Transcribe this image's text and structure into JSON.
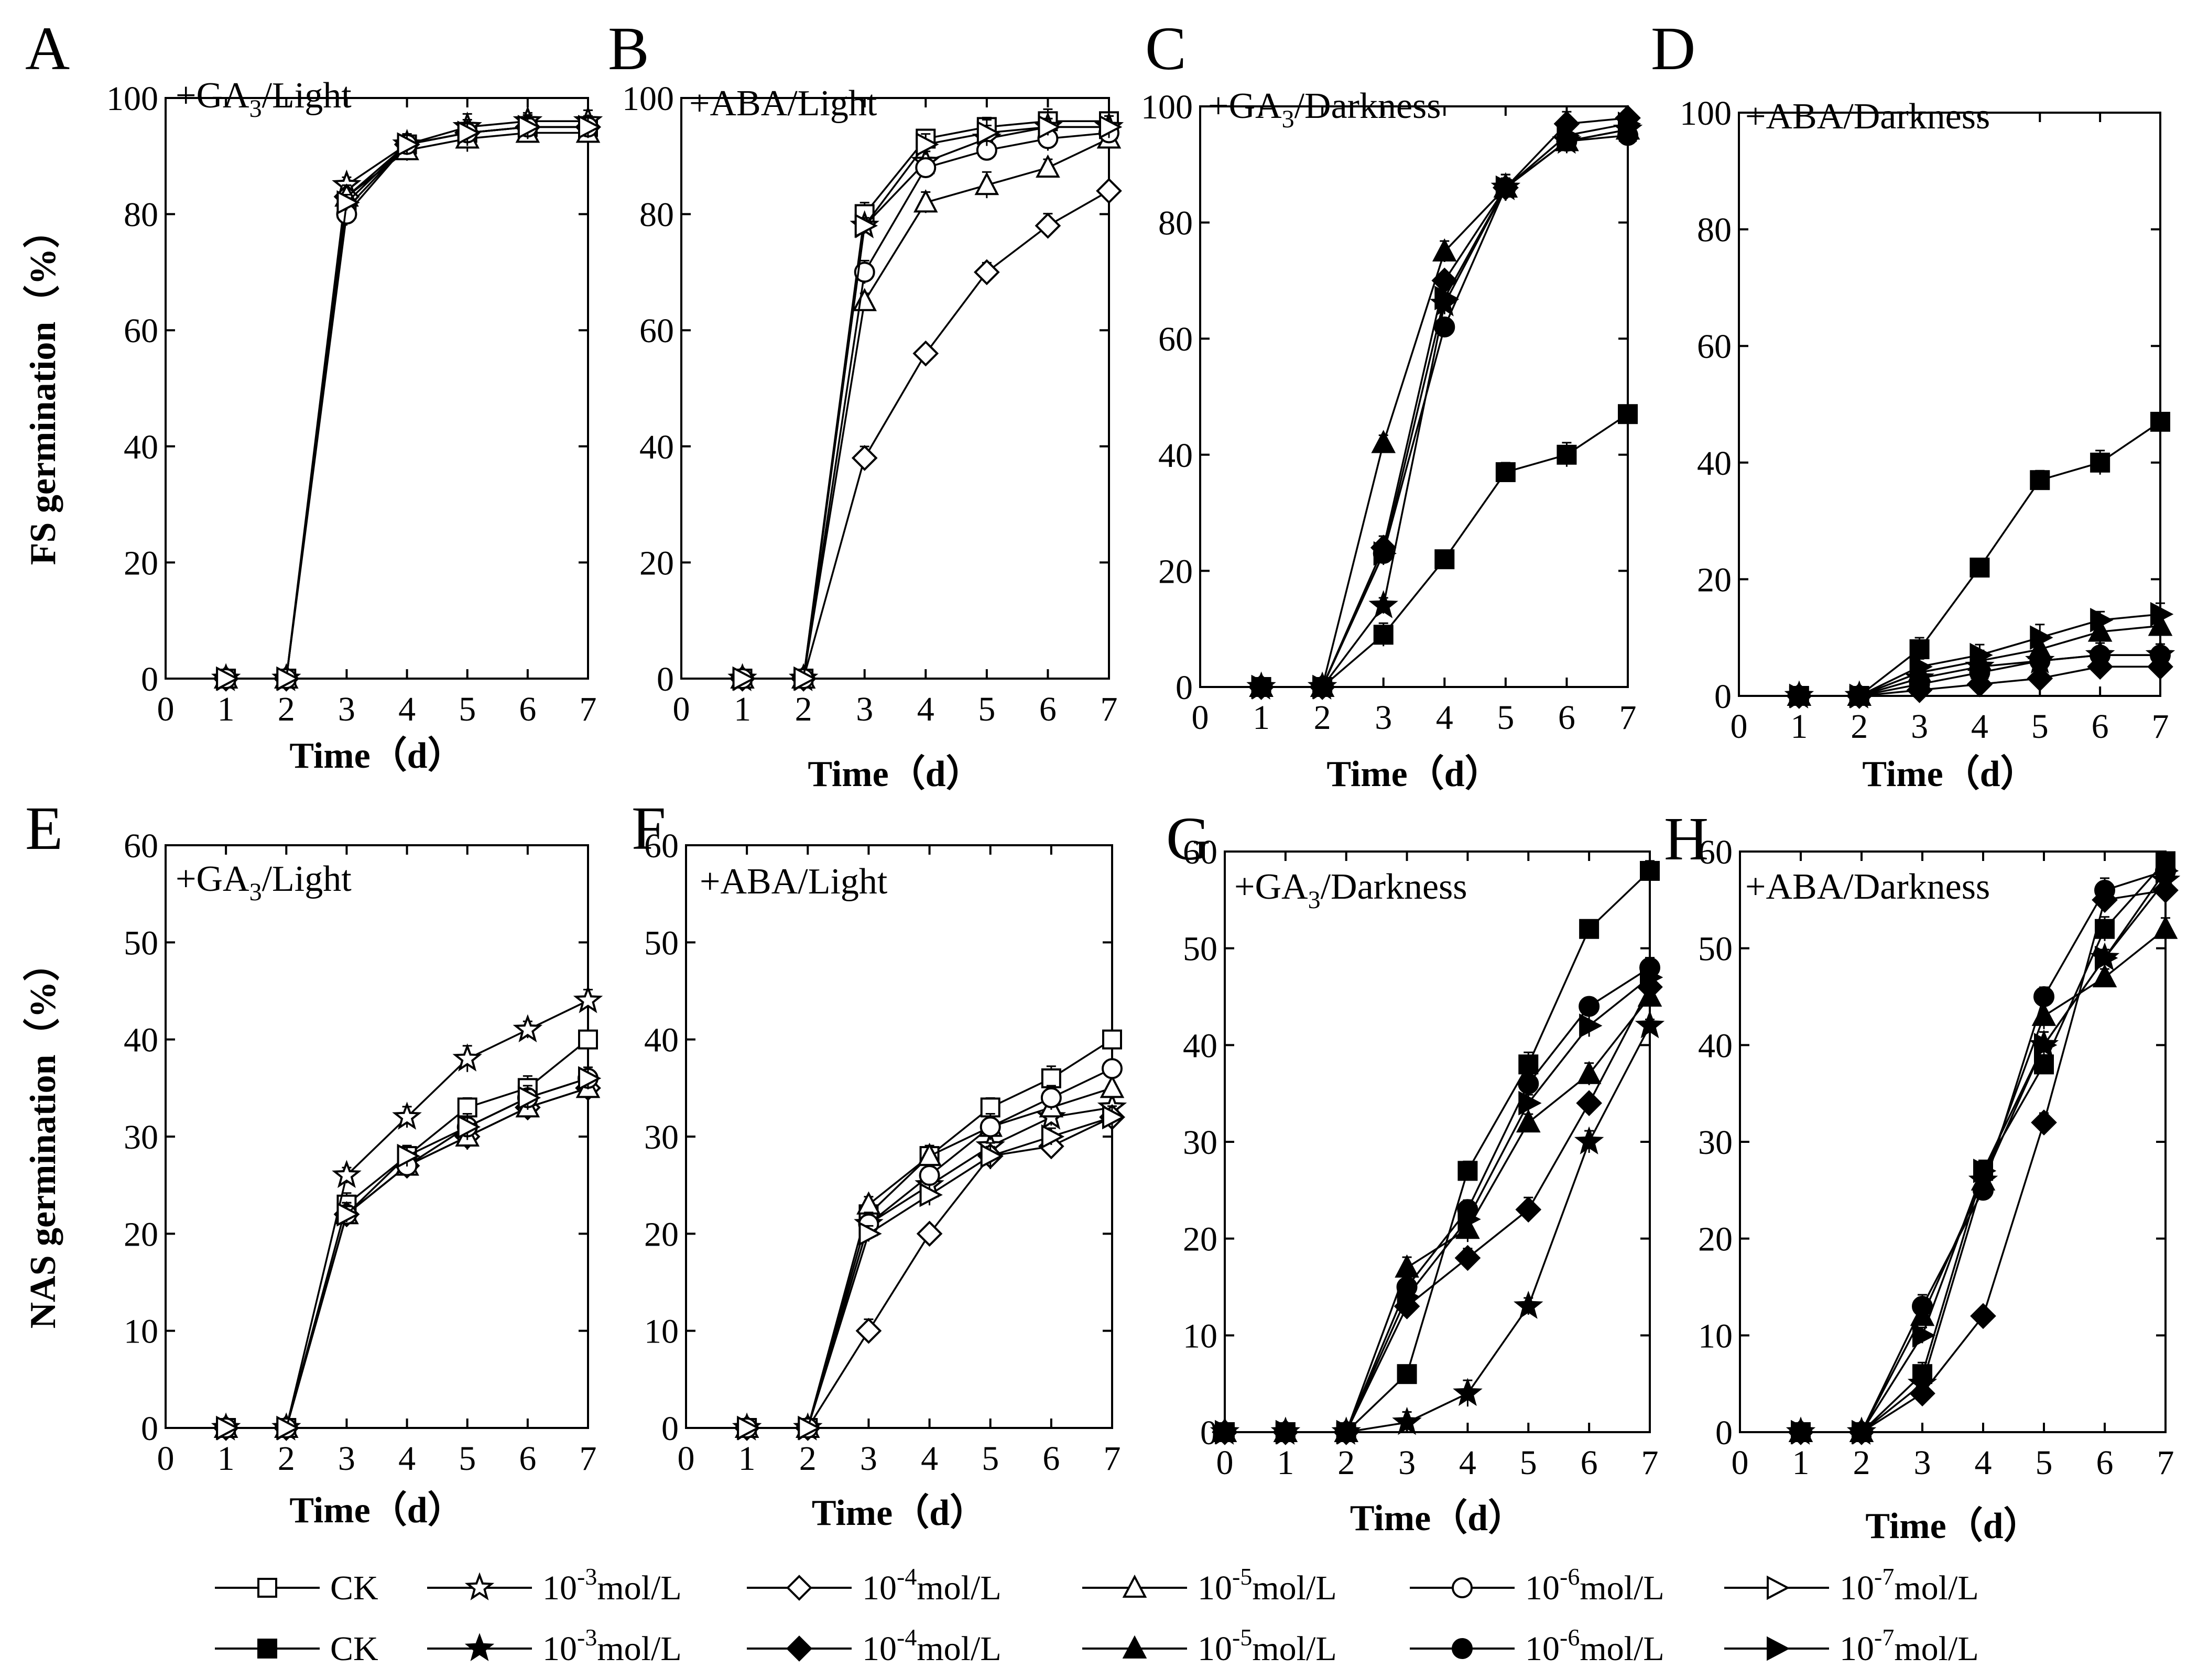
{
  "chart_data": [
    {
      "id": "A",
      "type": "line",
      "annotation": "+GA3/Light",
      "annotation_main": "+GA",
      "annotation_sub": "3",
      "annotation_rest": "/Light",
      "ylabel": "FS germination（%）",
      "xlabel": "Time（d）",
      "xlim": [
        0,
        7
      ],
      "ylim": [
        0,
        100
      ],
      "xticks": [
        "0",
        "1",
        "2",
        "3",
        "4",
        "5",
        "6",
        "7"
      ],
      "yticks": [
        "0",
        "20",
        "40",
        "60",
        "80",
        "100"
      ],
      "x": [
        1,
        2,
        3,
        4,
        5,
        6,
        7
      ],
      "filled": false,
      "series": [
        {
          "name": "CK",
          "marker": "square",
          "values": [
            0,
            0,
            81,
            92,
            94,
            95,
            95
          ]
        },
        {
          "name": "10-3mol/L",
          "marker": "star",
          "values": [
            0,
            0,
            85,
            92,
            95,
            96,
            96
          ]
        },
        {
          "name": "10-4mol/L",
          "marker": "diamond",
          "values": [
            0,
            0,
            83,
            92,
            94,
            95,
            95
          ]
        },
        {
          "name": "10-5mol/L",
          "marker": "triangle",
          "values": [
            0,
            0,
            83,
            91,
            93,
            94,
            94
          ]
        },
        {
          "name": "10-6mol/L",
          "marker": "circle",
          "values": [
            0,
            0,
            80,
            92,
            94,
            95,
            95
          ]
        },
        {
          "name": "10-7mol/L",
          "marker": "triangle-right",
          "values": [
            0,
            0,
            82,
            92,
            94,
            95,
            95
          ]
        }
      ]
    },
    {
      "id": "B",
      "type": "line",
      "annotation": "+ABA/Light",
      "annotation_main": "+ABA/Light",
      "annotation_sub": "",
      "annotation_rest": "",
      "ylabel": "",
      "xlabel": "Time（d）",
      "xlim": [
        0,
        7
      ],
      "ylim": [
        0,
        100
      ],
      "xticks": [
        "0",
        "1",
        "2",
        "3",
        "4",
        "5",
        "6",
        "7"
      ],
      "yticks": [
        "0",
        "20",
        "40",
        "60",
        "80",
        "100"
      ],
      "x": [
        1,
        2,
        3,
        4,
        5,
        6,
        7
      ],
      "filled": false,
      "series": [
        {
          "name": "CK",
          "marker": "square",
          "values": [
            0,
            0,
            80,
            93,
            95,
            96,
            96
          ]
        },
        {
          "name": "10-3mol/L",
          "marker": "star",
          "values": [
            0,
            0,
            78,
            89,
            93,
            95,
            95
          ]
        },
        {
          "name": "10-4mol/L",
          "marker": "diamond",
          "values": [
            0,
            0,
            38,
            56,
            70,
            78,
            84
          ]
        },
        {
          "name": "10-5mol/L",
          "marker": "triangle",
          "values": [
            0,
            0,
            65,
            82,
            85,
            88,
            93
          ]
        },
        {
          "name": "10-6mol/L",
          "marker": "circle",
          "values": [
            0,
            0,
            70,
            88,
            91,
            93,
            94
          ]
        },
        {
          "name": "10-7mol/L",
          "marker": "triangle-right",
          "values": [
            0,
            0,
            78,
            92,
            94,
            95,
            95
          ]
        }
      ]
    },
    {
      "id": "C",
      "type": "line",
      "annotation": "+GA3/Darkness",
      "annotation_main": "+GA",
      "annotation_sub": "3",
      "annotation_rest": "/Darkness",
      "ylabel": "",
      "xlabel": "Time（d）",
      "xlim": [
        0,
        7
      ],
      "ylim": [
        0,
        100
      ],
      "xticks": [
        "0",
        "1",
        "2",
        "3",
        "4",
        "5",
        "6",
        "7"
      ],
      "yticks": [
        "0",
        "20",
        "40",
        "60",
        "80",
        "100"
      ],
      "x": [
        1,
        2,
        3,
        4,
        5,
        6,
        7
      ],
      "filled": true,
      "series": [
        {
          "name": "CK",
          "marker": "square",
          "values": [
            0,
            0,
            9,
            22,
            37,
            40,
            47
          ]
        },
        {
          "name": "10-3mol/L",
          "marker": "star",
          "values": [
            0,
            0,
            14,
            66,
            86,
            94,
            96
          ]
        },
        {
          "name": "10-4mol/L",
          "marker": "diamond",
          "values": [
            0,
            0,
            24,
            70,
            86,
            97,
            98
          ]
        },
        {
          "name": "10-5mol/L",
          "marker": "triangle",
          "values": [
            0,
            0,
            42,
            75,
            86,
            94,
            96
          ]
        },
        {
          "name": "10-6mol/L",
          "marker": "circle",
          "values": [
            0,
            0,
            23,
            62,
            86,
            94,
            95
          ]
        },
        {
          "name": "10-7mol/L",
          "marker": "triangle-right",
          "values": [
            0,
            0,
            23,
            67,
            86,
            95,
            97
          ]
        }
      ]
    },
    {
      "id": "D",
      "type": "line",
      "annotation": "+ABA/Darkness",
      "annotation_main": "+ABA/Darkness",
      "annotation_sub": "",
      "annotation_rest": "",
      "ylabel": "",
      "xlabel": "Time（d）",
      "xlim": [
        0,
        7
      ],
      "ylim": [
        0,
        100
      ],
      "xticks": [
        "0",
        "1",
        "2",
        "3",
        "4",
        "5",
        "6",
        "7"
      ],
      "yticks": [
        "0",
        "20",
        "40",
        "60",
        "80",
        "100"
      ],
      "x": [
        1,
        2,
        3,
        4,
        5,
        6,
        7
      ],
      "filled": true,
      "series": [
        {
          "name": "CK",
          "marker": "square",
          "values": [
            0,
            0,
            8,
            22,
            37,
            40,
            47
          ]
        },
        {
          "name": "10-3mol/L",
          "marker": "star",
          "values": [
            0,
            0,
            3,
            5,
            6,
            7,
            7
          ]
        },
        {
          "name": "10-4mol/L",
          "marker": "diamond",
          "values": [
            0,
            0,
            1,
            2,
            3,
            5,
            5
          ]
        },
        {
          "name": "10-5mol/L",
          "marker": "triangle",
          "values": [
            0,
            0,
            4,
            6,
            8,
            11,
            12
          ]
        },
        {
          "name": "10-6mol/L",
          "marker": "circle",
          "values": [
            0,
            0,
            2,
            4,
            6,
            7,
            7
          ]
        },
        {
          "name": "10-7mol/L",
          "marker": "triangle-right",
          "values": [
            0,
            0,
            5,
            7,
            10,
            13,
            14
          ]
        }
      ]
    },
    {
      "id": "E",
      "type": "line",
      "annotation": "+GA3/Light",
      "annotation_main": "+GA",
      "annotation_sub": "3",
      "annotation_rest": "/Light",
      "ylabel": "NAS germination（%）",
      "xlabel": "Time（d）",
      "xlim": [
        0,
        7
      ],
      "ylim": [
        0,
        60
      ],
      "xticks": [
        "0",
        "1",
        "2",
        "3",
        "4",
        "5",
        "6",
        "7"
      ],
      "yticks": [
        "0",
        "10",
        "20",
        "30",
        "40",
        "50",
        "60"
      ],
      "x": [
        1,
        2,
        3,
        4,
        5,
        6,
        7
      ],
      "filled": false,
      "series": [
        {
          "name": "CK",
          "marker": "square",
          "values": [
            0,
            0,
            23,
            28,
            33,
            35,
            40
          ]
        },
        {
          "name": "10-3mol/L",
          "marker": "star",
          "values": [
            0,
            0,
            26,
            32,
            38,
            41,
            44
          ]
        },
        {
          "name": "10-4mol/L",
          "marker": "diamond",
          "values": [
            0,
            0,
            22,
            27,
            30,
            33,
            35
          ]
        },
        {
          "name": "10-5mol/L",
          "marker": "triangle",
          "values": [
            0,
            0,
            22,
            27,
            30,
            33,
            35
          ]
        },
        {
          "name": "10-6mol/L",
          "marker": "circle",
          "values": [
            0,
            0,
            22,
            27,
            31,
            34,
            36
          ]
        },
        {
          "name": "10-7mol/L",
          "marker": "triangle-right",
          "values": [
            0,
            0,
            22,
            28,
            31,
            34,
            36
          ]
        }
      ]
    },
    {
      "id": "F",
      "type": "line",
      "annotation": "+ABA/Light",
      "annotation_main": "+ABA/Light",
      "annotation_sub": "",
      "annotation_rest": "",
      "ylabel": "",
      "xlabel": "Time（d）",
      "xlim": [
        0,
        7
      ],
      "ylim": [
        0,
        60
      ],
      "xticks": [
        "0",
        "1",
        "2",
        "3",
        "4",
        "5",
        "6",
        "7"
      ],
      "yticks": [
        "0",
        "10",
        "20",
        "30",
        "40",
        "50",
        "60"
      ],
      "x": [
        1,
        2,
        3,
        4,
        5,
        6,
        7
      ],
      "filled": false,
      "series": [
        {
          "name": "CK",
          "marker": "square",
          "values": [
            0,
            0,
            22,
            28,
            33,
            36,
            40
          ]
        },
        {
          "name": "10-3mol/L",
          "marker": "star",
          "values": [
            0,
            0,
            21,
            25,
            29,
            32,
            33
          ]
        },
        {
          "name": "10-4mol/L",
          "marker": "diamond",
          "values": [
            0,
            0,
            10,
            20,
            28,
            29,
            32
          ]
        },
        {
          "name": "10-5mol/L",
          "marker": "triangle",
          "values": [
            0,
            0,
            23,
            28,
            31,
            33,
            35
          ]
        },
        {
          "name": "10-6mol/L",
          "marker": "circle",
          "values": [
            0,
            0,
            21,
            26,
            31,
            34,
            37
          ]
        },
        {
          "name": "10-7mol/L",
          "marker": "triangle-right",
          "values": [
            0,
            0,
            20,
            24,
            28,
            30,
            32
          ]
        }
      ]
    },
    {
      "id": "G",
      "type": "line",
      "annotation": "+GA3/Darkness",
      "annotation_main": "+GA",
      "annotation_sub": "3",
      "annotation_rest": "/Darkness",
      "ylabel": "",
      "xlabel": "Time（d）",
      "xlim": [
        0,
        7
      ],
      "ylim": [
        0,
        60
      ],
      "xticks": [
        "0",
        "1",
        "2",
        "3",
        "4",
        "5",
        "6",
        "7"
      ],
      "yticks": [
        "0",
        "10",
        "20",
        "30",
        "40",
        "50",
        "60"
      ],
      "x": [
        0,
        1,
        2,
        3,
        4,
        5,
        6,
        7
      ],
      "filled": true,
      "series": [
        {
          "name": "CK",
          "marker": "square",
          "values": [
            0,
            0,
            0,
            6,
            27,
            38,
            52,
            58
          ]
        },
        {
          "name": "10-3mol/L",
          "marker": "star",
          "values": [
            0,
            0,
            0,
            1,
            4,
            13,
            30,
            42
          ]
        },
        {
          "name": "10-4mol/L",
          "marker": "diamond",
          "values": [
            0,
            0,
            0,
            13,
            18,
            23,
            34,
            46
          ]
        },
        {
          "name": "10-5mol/L",
          "marker": "triangle",
          "values": [
            0,
            0,
            0,
            17,
            21,
            32,
            37,
            45
          ]
        },
        {
          "name": "10-6mol/L",
          "marker": "circle",
          "values": [
            0,
            0,
            0,
            15,
            23,
            36,
            44,
            48
          ]
        },
        {
          "name": "10-7mol/L",
          "marker": "triangle-right",
          "values": [
            0,
            0,
            0,
            14,
            22,
            34,
            42,
            47
          ]
        }
      ]
    },
    {
      "id": "H",
      "type": "line",
      "annotation": "+ABA/Darkness",
      "annotation_main": "+ABA/Darkness",
      "annotation_sub": "",
      "annotation_rest": "",
      "ylabel": "",
      "xlabel": "Time（d）",
      "xlim": [
        0,
        7
      ],
      "ylim": [
        0,
        60
      ],
      "xticks": [
        "0",
        "1",
        "2",
        "3",
        "4",
        "5",
        "6",
        "7"
      ],
      "yticks": [
        "0",
        "10",
        "20",
        "30",
        "40",
        "50",
        "60"
      ],
      "x": [
        1,
        2,
        3,
        4,
        5,
        6,
        7
      ],
      "filled": true,
      "series": [
        {
          "name": "CK",
          "marker": "square",
          "values": [
            0,
            0,
            6,
            27,
            38,
            52,
            59
          ]
        },
        {
          "name": "10-3mol/L",
          "marker": "star",
          "values": [
            0,
            0,
            5,
            26,
            40,
            49,
            57
          ]
        },
        {
          "name": "10-4mol/L",
          "marker": "diamond",
          "values": [
            0,
            0,
            4,
            12,
            32,
            55,
            56
          ]
        },
        {
          "name": "10-5mol/L",
          "marker": "triangle",
          "values": [
            0,
            0,
            12,
            26,
            43,
            47,
            52
          ]
        },
        {
          "name": "10-6mol/L",
          "marker": "circle",
          "values": [
            0,
            0,
            13,
            25,
            45,
            56,
            58
          ]
        },
        {
          "name": "10-7mol/L",
          "marker": "triangle-right",
          "values": [
            0,
            0,
            10,
            27,
            40,
            49,
            58
          ]
        }
      ]
    }
  ],
  "legend": {
    "open": [
      {
        "label": "CK",
        "marker": "square",
        "base": "",
        "exp": "",
        "unit": ""
      },
      {
        "label": "10-3mol/L",
        "marker": "star",
        "base": "10",
        "exp": "-3",
        "unit": "mol/L"
      },
      {
        "label": "10-4mol/L",
        "marker": "diamond",
        "base": "10",
        "exp": "-4",
        "unit": "mol/L"
      },
      {
        "label": "10-5mol/L",
        "marker": "triangle",
        "base": "10",
        "exp": "-5",
        "unit": "mol/L"
      },
      {
        "label": "10-6mol/L",
        "marker": "circle",
        "base": "10",
        "exp": "-6",
        "unit": "mol/L"
      },
      {
        "label": "10-7mol/L",
        "marker": "triangle-right",
        "base": "10",
        "exp": "-7",
        "unit": "mol/L"
      }
    ],
    "filled": [
      {
        "label": "CK",
        "marker": "square",
        "base": "",
        "exp": "",
        "unit": ""
      },
      {
        "label": "10-3mol/L",
        "marker": "star",
        "base": "10",
        "exp": "-3",
        "unit": "mol/L"
      },
      {
        "label": "10-4mol/L",
        "marker": "diamond",
        "base": "10",
        "exp": "-4",
        "unit": "mol/L"
      },
      {
        "label": "10-5mol/L",
        "marker": "triangle",
        "base": "10",
        "exp": "-5",
        "unit": "mol/L"
      },
      {
        "label": "10-6mol/L",
        "marker": "circle",
        "base": "10",
        "exp": "-6",
        "unit": "mol/L"
      },
      {
        "label": "10-7mol/L",
        "marker": "triangle-right",
        "base": "10",
        "exp": "-7",
        "unit": "mol/L"
      }
    ]
  },
  "colors": {
    "line": "#000000",
    "background": "#ffffff"
  }
}
